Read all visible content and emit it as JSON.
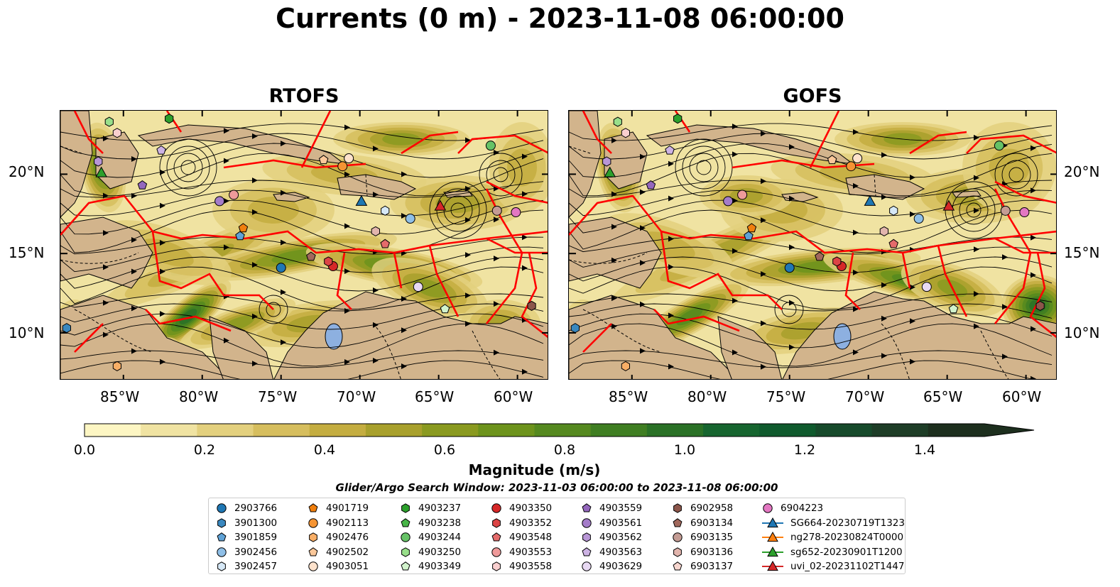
{
  "title": "Currents (0 m) - 2023-11-08 06:00:00",
  "panels": [
    {
      "title": "RTOFS"
    },
    {
      "title": "GOFS"
    }
  ],
  "map": {
    "lon_range": [
      -89,
      -58
    ],
    "lat_range": [
      7,
      24
    ],
    "x_ticks": [
      "85°W",
      "80°W",
      "75°W",
      "70°W",
      "65°W",
      "60°W"
    ],
    "y_ticks": [
      "20°N",
      "15°N",
      "10°N"
    ],
    "land_color": "#d2b48c",
    "track_color": "#ff0000"
  },
  "colorbar": {
    "ticks": [
      "0.0",
      "0.2",
      "0.4",
      "0.6",
      "0.8",
      "1.0",
      "1.2",
      "1.4"
    ],
    "label": "Magnitude (m/s)",
    "range": [
      0,
      1.5
    ],
    "extend": "max",
    "colors": [
      "#fdf6c3",
      "#f0e3a2",
      "#e3d07e",
      "#d6be5e",
      "#c4ad40",
      "#a8a02c",
      "#8a9a20",
      "#6d931c",
      "#55891f",
      "#3f7e22",
      "#2a7126",
      "#16652f",
      "#0f5a2d",
      "#174a2b",
      "#1e3d27",
      "#1d2f1e"
    ]
  },
  "search_window": "Glider/Argo Search Window: 2023-11-03 06:00:00 to 2023-11-08 06:00:00",
  "legend": [
    [
      {
        "label": "2903766",
        "marker": "circle",
        "color": "#1f77b4"
      },
      {
        "label": "3901300",
        "marker": "hexagon",
        "color": "#3a88bf"
      },
      {
        "label": "3901859",
        "marker": "pentagon",
        "color": "#5fa2d6"
      },
      {
        "label": "3902456",
        "marker": "circle",
        "color": "#8fbfe7"
      },
      {
        "label": "3902457",
        "marker": "hexagon",
        "color": "#d6e8f6"
      }
    ],
    [
      {
        "label": "4901719",
        "marker": "pentagon",
        "color": "#f07f0e"
      },
      {
        "label": "4902113",
        "marker": "circle",
        "color": "#f59433"
      },
      {
        "label": "4902476",
        "marker": "hexagon",
        "color": "#f8ae66"
      },
      {
        "label": "4902502",
        "marker": "pentagon",
        "color": "#fbc89a"
      },
      {
        "label": "4903051",
        "marker": "circle",
        "color": "#fde2cc"
      }
    ],
    [
      {
        "label": "4903237",
        "marker": "hexagon",
        "color": "#2ca02c"
      },
      {
        "label": "4903238",
        "marker": "pentagon",
        "color": "#47b547"
      },
      {
        "label": "4903244",
        "marker": "circle",
        "color": "#66c266"
      },
      {
        "label": "4903250",
        "marker": "hexagon",
        "color": "#98df8a"
      },
      {
        "label": "4903349",
        "marker": "pentagon",
        "color": "#d2f3cc"
      }
    ],
    [
      {
        "label": "4903350",
        "marker": "circle",
        "color": "#d62728"
      },
      {
        "label": "4903352",
        "marker": "hexagon",
        "color": "#dc4445"
      },
      {
        "label": "4903548",
        "marker": "pentagon",
        "color": "#e46b6b"
      },
      {
        "label": "4903553",
        "marker": "circle",
        "color": "#ef9a9a"
      },
      {
        "label": "4903558",
        "marker": "hexagon",
        "color": "#f9cfcf"
      }
    ],
    [
      {
        "label": "4903559",
        "marker": "pentagon",
        "color": "#9467bd"
      },
      {
        "label": "4903561",
        "marker": "circle",
        "color": "#a47cc9"
      },
      {
        "label": "4903562",
        "marker": "hexagon",
        "color": "#b896d6"
      },
      {
        "label": "4903563",
        "marker": "pentagon",
        "color": "#cdb3e4"
      },
      {
        "label": "4903629",
        "marker": "circle",
        "color": "#e8d9f3"
      }
    ],
    [
      {
        "label": "6902958",
        "marker": "hexagon",
        "color": "#8c564b"
      },
      {
        "label": "6903134",
        "marker": "pentagon",
        "color": "#a1685c"
      },
      {
        "label": "6903135",
        "marker": "circle",
        "color": "#c49c94"
      },
      {
        "label": "6903136",
        "marker": "hexagon",
        "color": "#e2b5ad"
      },
      {
        "label": "6903137",
        "marker": "pentagon",
        "color": "#f7d6cf"
      }
    ],
    [
      {
        "label": "6904223",
        "marker": "circle",
        "color": "#e377c2"
      },
      {
        "label": "SG664-20230719T1323",
        "marker": "line-triangle",
        "color": "#1f77b4"
      },
      {
        "label": "ng278-20230824T0000",
        "marker": "line-triangle",
        "color": "#ff7f0e"
      },
      {
        "label": "sg652-20230901T1200",
        "marker": "line-triangle",
        "color": "#2ca02c"
      },
      {
        "label": "uvi_02-20231102T1447",
        "marker": "line-triangle",
        "color": "#d62728"
      }
    ]
  ],
  "platforms": [
    {
      "id": "2903766",
      "lon": -75,
      "lat": 14.1
    },
    {
      "id": "3901300",
      "lon": -88.6,
      "lat": 10.3
    },
    {
      "id": "3901859",
      "lon": -77.6,
      "lat": 16.1
    },
    {
      "id": "3902456",
      "lon": -66.8,
      "lat": 17.2
    },
    {
      "id": "3902457",
      "lon": -68.4,
      "lat": 17.7
    },
    {
      "id": "4901719",
      "lon": -77.4,
      "lat": 16.6
    },
    {
      "id": "4902113",
      "lon": -71.1,
      "lat": 20.5
    },
    {
      "id": "4902476",
      "lon": -85.4,
      "lat": 7.9
    },
    {
      "id": "4902502",
      "lon": -72.3,
      "lat": 20.9
    },
    {
      "id": "4903051",
      "lon": -70.7,
      "lat": 21.0
    },
    {
      "id": "4903237",
      "lon": -82.1,
      "lat": 23.5
    },
    {
      "id": "4903244",
      "lon": -61.7,
      "lat": 21.8
    },
    {
      "id": "4903250",
      "lon": -85.9,
      "lat": 23.3
    },
    {
      "id": "4903349",
      "lon": -64.6,
      "lat": 11.5
    },
    {
      "id": "4903350",
      "lon": -71.7,
      "lat": 14.2
    },
    {
      "id": "4903352",
      "lon": -72,
      "lat": 14.5
    },
    {
      "id": "4903548",
      "lon": -68.4,
      "lat": 15.6
    },
    {
      "id": "4903553",
      "lon": -78,
      "lat": 18.7
    },
    {
      "id": "4903558",
      "lon": -85.4,
      "lat": 22.6
    },
    {
      "id": "4903559",
      "lon": -83.8,
      "lat": 19.3
    },
    {
      "id": "4903561",
      "lon": -78.9,
      "lat": 18.3
    },
    {
      "id": "4903562",
      "lon": -86.6,
      "lat": 20.8
    },
    {
      "id": "4903563",
      "lon": -82.6,
      "lat": 21.5
    },
    {
      "id": "4903629",
      "lon": -66.3,
      "lat": 12.9
    },
    {
      "id": "6902958",
      "lon": -59.1,
      "lat": 11.7
    },
    {
      "id": "6903134",
      "lon": -73.1,
      "lat": 14.8
    },
    {
      "id": "6903135",
      "lon": -61.3,
      "lat": 17.7
    },
    {
      "id": "6903136",
      "lon": -69,
      "lat": 16.4
    },
    {
      "id": "6904223",
      "lon": -60.1,
      "lat": 17.6
    }
  ],
  "gliders": [
    {
      "id": "SG664-20230719T1323",
      "lon": -69.9,
      "lat": 18.3
    },
    {
      "id": "sg652-20230901T1200",
      "lon": -86.4,
      "lat": 20.1
    },
    {
      "id": "uvi_02-20231102T1447",
      "lon": -64.9,
      "lat": 18.0
    }
  ]
}
